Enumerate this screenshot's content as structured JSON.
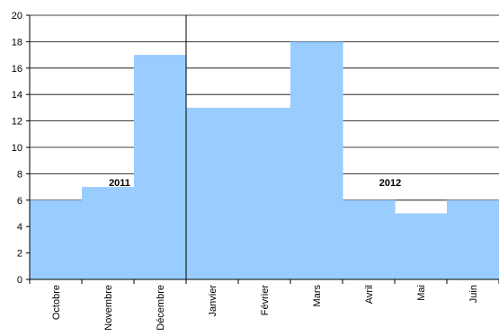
{
  "chart_data": {
    "type": "bar",
    "categories": [
      "Octobre",
      "Novembre",
      "Décembre",
      "Janvier",
      "Février",
      "Mars",
      "Avril",
      "Mai",
      "Juin"
    ],
    "values": [
      6,
      7,
      17,
      13,
      13,
      18,
      6,
      5,
      6
    ],
    "ylim": [
      0,
      20
    ],
    "yticks": [
      0,
      2,
      4,
      6,
      8,
      10,
      12,
      14,
      16,
      18,
      20
    ],
    "grid": true,
    "bar_color": "#99ccff",
    "annotations": [
      "2011",
      "2012"
    ]
  }
}
